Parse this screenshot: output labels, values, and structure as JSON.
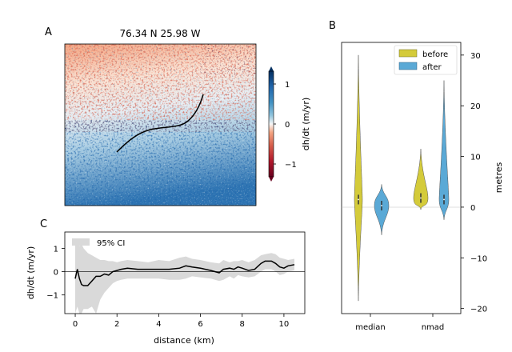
{
  "figure": {
    "panel_a": {
      "letter": "A",
      "title": "76.34 N 25.98 W",
      "colorbar": {
        "label": "dh/dt (m/yr)",
        "ticks": [
          "1",
          "0",
          "−1"
        ],
        "vmin": -1.3,
        "vmax": 1.3,
        "colormap": "RdBu"
      }
    },
    "panel_b": {
      "letter": "B",
      "ylabel": "metres",
      "legend": [
        "before",
        "after"
      ],
      "colors": {
        "before": "#d4cb3a",
        "after": "#5aa9d6"
      }
    },
    "panel_c": {
      "letter": "C",
      "xlabel": "distance (km)",
      "ylabel": "dh/dt (m/yr)",
      "legend": "95% CI"
    }
  },
  "chart_data": [
    {
      "type": "heatmap",
      "panel": "A",
      "title": "76.34 N 25.98 W",
      "description_colorbar_label": "dh/dt (m/yr)",
      "colorbar_ticks": [
        1,
        0,
        -1
      ],
      "colorbar_range": [
        -1.3,
        1.3
      ]
    },
    {
      "type": "violin",
      "panel": "B",
      "categories": [
        "median",
        "nmad"
      ],
      "series": [
        {
          "name": "before",
          "ranges": [
            [
              -18.5,
              30
            ],
            [
              -0.5,
              11.5
            ]
          ],
          "centers": [
            1.5,
            1.8
          ]
        },
        {
          "name": "after",
          "ranges": [
            [
              -5.5,
              4.5
            ],
            [
              -2.5,
              25
            ]
          ],
          "centers": [
            0.3,
            1.5
          ]
        }
      ],
      "ylabel": "metres",
      "yticks": [
        30,
        20,
        10,
        0,
        -10,
        -20
      ],
      "ylim": [
        -21,
        32.5
      ],
      "legend_position": "top-right"
    },
    {
      "type": "line",
      "panel": "C",
      "xlabel": "distance (km)",
      "ylabel": "dh/dt (m/yr)",
      "xticks": [
        0,
        2,
        4,
        6,
        8,
        10
      ],
      "yticks": [
        1,
        0,
        -1
      ],
      "xlim": [
        -0.5,
        11.0
      ],
      "ylim": [
        -1.8,
        1.7
      ],
      "legend": "95% CI",
      "x": [
        0.0,
        0.1,
        0.2,
        0.3,
        0.4,
        0.6,
        0.8,
        1.0,
        1.2,
        1.4,
        1.6,
        1.8,
        2.0,
        2.2,
        2.5,
        3.0,
        3.5,
        4.0,
        4.5,
        5.0,
        5.3,
        5.6,
        6.0,
        6.5,
        6.9,
        7.1,
        7.4,
        7.6,
        7.8,
        8.0,
        8.3,
        8.6,
        8.9,
        9.1,
        9.4,
        9.6,
        9.8,
        10.0,
        10.2,
        10.5
      ],
      "y": [
        -0.3,
        0.1,
        -0.3,
        -0.55,
        -0.6,
        -0.6,
        -0.4,
        -0.2,
        -0.2,
        -0.1,
        -0.15,
        0.0,
        0.05,
        0.1,
        0.15,
        0.1,
        0.1,
        0.1,
        0.1,
        0.15,
        0.25,
        0.2,
        0.15,
        0.05,
        -0.05,
        0.1,
        0.15,
        0.1,
        0.2,
        0.15,
        0.05,
        0.1,
        0.35,
        0.45,
        0.45,
        0.35,
        0.2,
        0.15,
        0.25,
        0.3
      ],
      "ci_upper": [
        1.3,
        1.3,
        1.1,
        1.2,
        1.0,
        0.8,
        0.7,
        0.6,
        0.5,
        0.5,
        0.45,
        0.45,
        0.4,
        0.45,
        0.5,
        0.45,
        0.4,
        0.5,
        0.45,
        0.6,
        0.65,
        0.55,
        0.5,
        0.4,
        0.35,
        0.5,
        0.4,
        0.45,
        0.45,
        0.5,
        0.4,
        0.5,
        0.7,
        0.75,
        0.8,
        0.75,
        0.6,
        0.55,
        0.5,
        0.55
      ],
      "ci_lower": [
        -1.8,
        -1.5,
        -1.8,
        -1.8,
        -1.6,
        -1.6,
        -1.5,
        -1.8,
        -1.2,
        -0.9,
        -0.7,
        -0.5,
        -0.4,
        -0.35,
        -0.3,
        -0.3,
        -0.3,
        -0.3,
        -0.35,
        -0.35,
        -0.3,
        -0.2,
        -0.25,
        -0.3,
        -0.4,
        -0.35,
        -0.2,
        -0.3,
        -0.15,
        -0.2,
        -0.25,
        -0.2,
        0.0,
        0.1,
        0.1,
        0.0,
        -0.15,
        -0.1,
        0.0,
        0.05
      ]
    }
  ]
}
